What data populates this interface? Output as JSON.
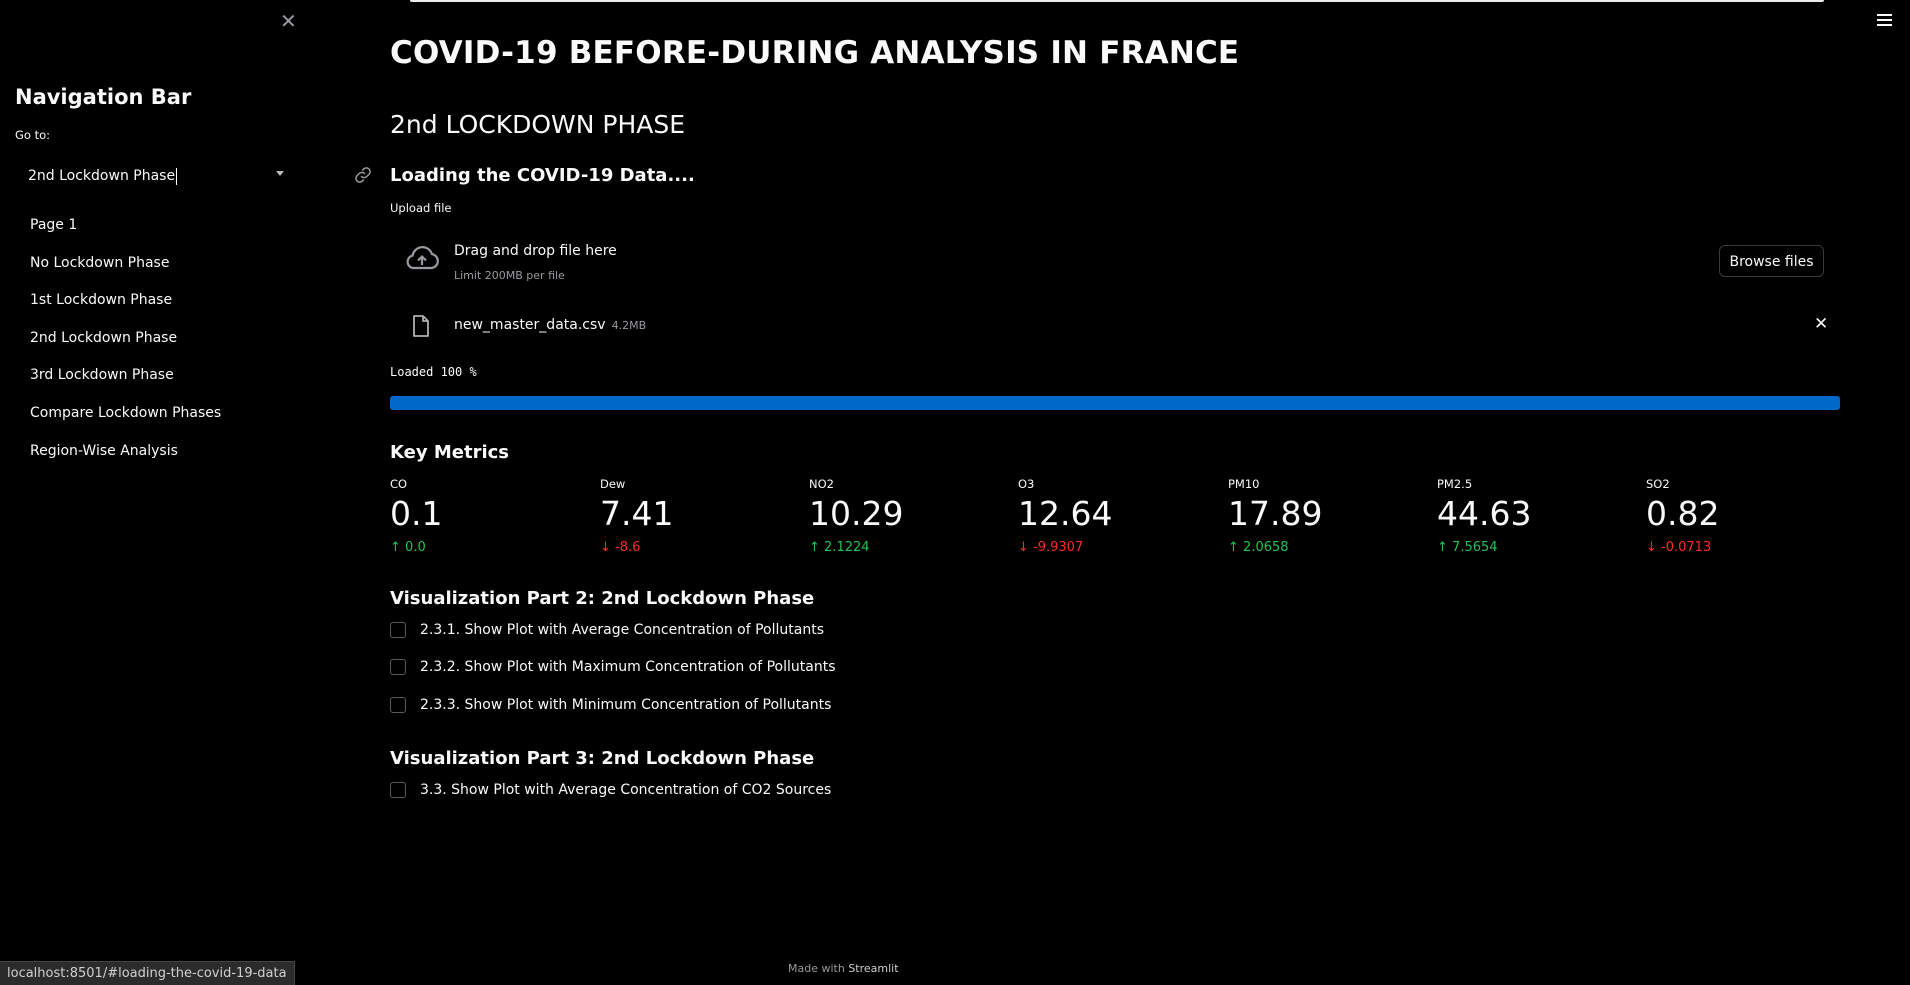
{
  "sidebar": {
    "close_symbol": "✕",
    "title": "Navigation Bar",
    "goto_label": "Go to:",
    "selected": "2nd Lockdown Phase",
    "items": [
      {
        "label": "Page 1"
      },
      {
        "label": "No Lockdown Phase"
      },
      {
        "label": "1st Lockdown Phase"
      },
      {
        "label": "2nd Lockdown Phase"
      },
      {
        "label": "3rd Lockdown Phase"
      },
      {
        "label": "Compare Lockdown Phases"
      },
      {
        "label": "Region-Wise Analysis"
      }
    ]
  },
  "status_url": "localhost:8501/#loading-the-covid-19-data",
  "main": {
    "title": "COVID-19 BEFORE-DURING ANALYSIS IN FRANCE",
    "subtitle": "2nd LOCKDOWN PHASE",
    "loading_heading": "Loading the COVID-19 Data....",
    "upload_label": "Upload file",
    "dropzone": {
      "main_text": "Drag and drop file here",
      "sub_text": "Limit 200MB per file",
      "browse_label": "Browse files"
    },
    "file": {
      "name": "new_master_data.csv",
      "size": "4.2MB",
      "remove_symbol": "✕"
    },
    "progress": {
      "text": "Loaded 100 %",
      "percent": 100,
      "color": "#0068c9"
    },
    "metrics_heading": "Key Metrics",
    "metrics": [
      {
        "label": "CO",
        "value": "0.1",
        "delta": "0.0",
        "direction": "up"
      },
      {
        "label": "Dew",
        "value": "7.41",
        "delta": "-8.6",
        "direction": "down"
      },
      {
        "label": "NO2",
        "value": "10.29",
        "delta": "2.1224",
        "direction": "up"
      },
      {
        "label": "O3",
        "value": "12.64",
        "delta": "-9.9307",
        "direction": "down"
      },
      {
        "label": "PM10",
        "value": "17.89",
        "delta": "2.0658",
        "direction": "up"
      },
      {
        "label": "PM2.5",
        "value": "44.63",
        "delta": "7.5654",
        "direction": "up"
      },
      {
        "label": "SO2",
        "value": "0.82",
        "delta": "-0.0713",
        "direction": "down"
      }
    ],
    "viz2_heading": "Visualization Part 2: 2nd Lockdown Phase",
    "viz2_checkboxes": [
      {
        "label": "2.3.1. Show Plot with Average Concentration of Pollutants"
      },
      {
        "label": "2.3.2. Show Plot with Maximum Concentration of Pollutants"
      },
      {
        "label": "2.3.3. Show Plot with Minimum Concentration of Pollutants"
      }
    ],
    "viz3_heading": "Visualization Part 3: 2nd Lockdown Phase",
    "viz3_checkboxes": [
      {
        "label": "3.3. Show Plot with Average Concentration of CO2 Sources"
      }
    ]
  },
  "footer": {
    "prefix": "Made with",
    "brand": "Streamlit"
  },
  "colors": {
    "background": "#000000",
    "delta_up": "#21c354",
    "delta_down": "#ff2b2b"
  }
}
